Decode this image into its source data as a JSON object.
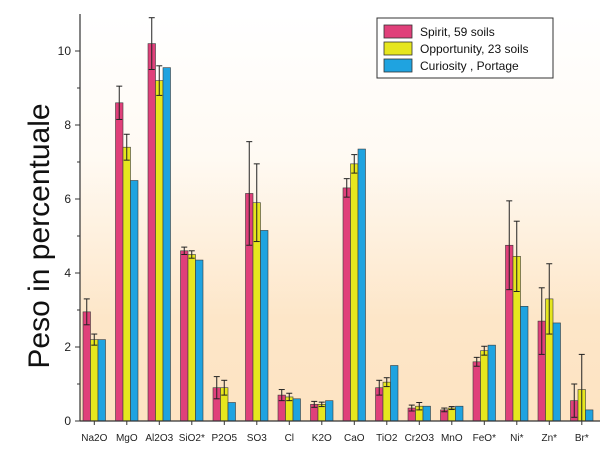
{
  "chart_data": {
    "type": "bar",
    "title": "",
    "xlabel": "",
    "ylabel": "Peso in percentuale",
    "ylim": [
      0,
      11
    ],
    "yticks": [
      0,
      2,
      4,
      6,
      8,
      10
    ],
    "categories": [
      "Na2O",
      "MgO",
      "Al2O3",
      "SiO2*",
      "P2O5",
      "SO3",
      "Cl",
      "K2O",
      "CaO",
      "TiO2",
      "Cr2O3",
      "MnO",
      "FeO*",
      "Ni*",
      "Zn*",
      "Br*"
    ],
    "series": [
      {
        "name": "Spirit, 59 soils",
        "color": "#e0407a",
        "values": [
          2.95,
          8.6,
          10.2,
          4.6,
          0.9,
          6.15,
          0.7,
          0.45,
          6.3,
          0.9,
          0.35,
          0.3,
          1.6,
          4.75,
          2.7,
          0.55
        ],
        "errors": [
          0.35,
          0.45,
          0.7,
          0.1,
          0.3,
          1.4,
          0.15,
          0.08,
          0.25,
          0.2,
          0.08,
          0.05,
          0.12,
          1.2,
          0.9,
          0.45
        ]
      },
      {
        "name": "Opportunity, 23 soils",
        "color": "#e6e61e",
        "values": [
          2.2,
          7.4,
          9.2,
          4.5,
          0.9,
          5.9,
          0.65,
          0.45,
          6.95,
          1.05,
          0.4,
          0.35,
          1.9,
          4.45,
          3.3,
          0.85
        ],
        "errors": [
          0.15,
          0.35,
          0.4,
          0.1,
          0.2,
          1.05,
          0.1,
          0.06,
          0.25,
          0.12,
          0.1,
          0.04,
          0.12,
          0.95,
          0.95,
          0.95
        ]
      },
      {
        "name": "Curiosity , Portage",
        "color": "#1fa3e0",
        "values": [
          2.2,
          6.5,
          9.55,
          4.35,
          0.5,
          5.15,
          0.6,
          0.55,
          7.35,
          1.5,
          0.4,
          0.4,
          2.05,
          3.1,
          2.65,
          0.3
        ],
        "errors": [
          0,
          0,
          0,
          0,
          0,
          0,
          0,
          0,
          0,
          0,
          0,
          0,
          0,
          0,
          0,
          0
        ]
      }
    ],
    "legend_position": "top-right"
  }
}
